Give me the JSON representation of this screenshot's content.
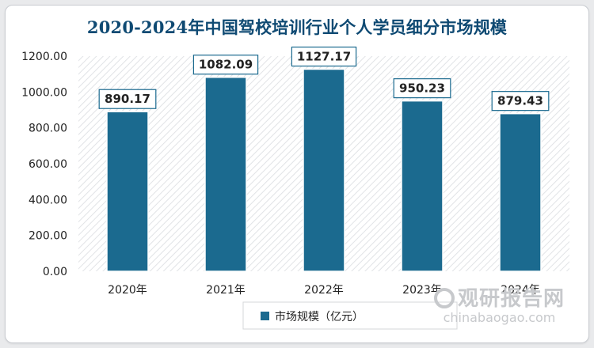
{
  "chart_data": {
    "type": "bar",
    "title": "2020-2024年中国驾校培训行业个人学员细分市场规模",
    "categories": [
      "2020年",
      "2021年",
      "2022年",
      "2023年",
      "2024年"
    ],
    "series": [
      {
        "name": "市场规模（亿元）",
        "values": [
          890.17,
          1082.09,
          1127.17,
          950.23,
          879.43
        ],
        "color": "#1b6a8f"
      }
    ],
    "data_labels": [
      "890.17",
      "1082.09",
      "1127.17",
      "950.23",
      "879.43"
    ],
    "yticks": [
      "0.00",
      "200.00",
      "400.00",
      "600.00",
      "800.00",
      "1000.00",
      "1200.00"
    ],
    "ylim": [
      0,
      1200
    ],
    "xlabel": "",
    "ylabel": "",
    "grid": false,
    "plot_background": "diagonal-hatch",
    "legend_position": "bottom-left"
  },
  "watermark": {
    "cn": "观研报告网",
    "en": "chinabaogao.com"
  },
  "colors": {
    "bar": "#1b6a8f",
    "title": "#0f4a73",
    "label_border": "#1b6a8f",
    "hatch": "#e1e3e6"
  }
}
